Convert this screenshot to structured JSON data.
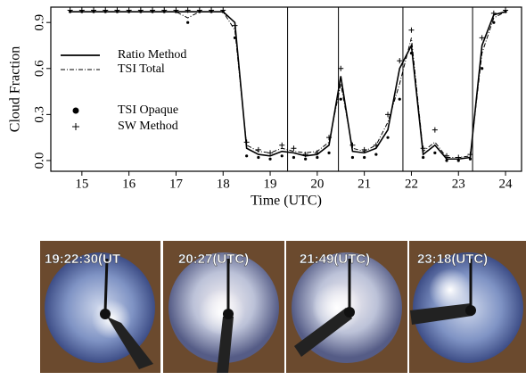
{
  "chart_data": {
    "type": "line",
    "xlabel": "Time (UTC)",
    "ylabel": "Cloud Fraction",
    "x": [
      14.75,
      15,
      15.25,
      15.5,
      15.75,
      16,
      16.25,
      16.5,
      16.75,
      17,
      17.25,
      17.5,
      17.75,
      18,
      18.25,
      18.5,
      18.75,
      19,
      19.25,
      19.5,
      19.75,
      20,
      20.25,
      20.5,
      20.75,
      21,
      21.25,
      21.5,
      21.75,
      22,
      22.25,
      22.5,
      22.75,
      23,
      23.25,
      23.5,
      23.75,
      24
    ],
    "series": [
      {
        "name": "Ratio Method",
        "color": "#000000",
        "style": "solid",
        "values": [
          0.97,
          0.97,
          0.97,
          0.97,
          0.97,
          0.97,
          0.97,
          0.97,
          0.97,
          0.97,
          0.97,
          0.97,
          0.97,
          0.97,
          0.9,
          0.08,
          0.04,
          0.03,
          0.06,
          0.05,
          0.03,
          0.04,
          0.1,
          0.55,
          0.06,
          0.05,
          0.08,
          0.2,
          0.6,
          0.75,
          0.04,
          0.1,
          0.01,
          0.01,
          0.02,
          0.75,
          0.95,
          0.97
        ]
      },
      {
        "name": "TSI Total",
        "color": "#000000",
        "style": "dashdot",
        "values": [
          0.97,
          0.97,
          0.97,
          0.97,
          0.97,
          0.97,
          0.97,
          0.97,
          0.97,
          0.97,
          0.93,
          0.97,
          0.97,
          0.97,
          0.85,
          0.1,
          0.06,
          0.05,
          0.08,
          0.06,
          0.05,
          0.06,
          0.12,
          0.5,
          0.08,
          0.06,
          0.1,
          0.25,
          0.5,
          0.8,
          0.06,
          0.12,
          0.02,
          0.02,
          0.03,
          0.7,
          0.93,
          0.97
        ]
      },
      {
        "name": "TSI Opaque",
        "color": "#000000",
        "style": "dot",
        "values": [
          0.97,
          0.97,
          0.97,
          0.97,
          0.97,
          0.97,
          0.97,
          0.97,
          0.97,
          0.97,
          0.9,
          0.97,
          0.97,
          0.97,
          0.8,
          0.03,
          0.02,
          0.01,
          0.03,
          0.02,
          0.01,
          0.02,
          0.05,
          0.4,
          0.02,
          0.02,
          0.04,
          0.15,
          0.4,
          0.7,
          0.02,
          0.05,
          0.0,
          0.0,
          0.01,
          0.6,
          0.9,
          0.97
        ]
      },
      {
        "name": "SW Method",
        "color": "#000000",
        "style": "plus",
        "values": [
          0.98,
          0.98,
          0.98,
          0.98,
          0.98,
          0.98,
          0.98,
          0.98,
          0.98,
          0.98,
          0.98,
          0.98,
          0.98,
          0.98,
          0.88,
          0.12,
          0.07,
          0.05,
          0.1,
          0.08,
          0.04,
          0.05,
          0.15,
          0.6,
          0.1,
          0.07,
          0.1,
          0.3,
          0.65,
          0.85,
          0.08,
          0.2,
          0.03,
          0.02,
          0.04,
          0.8,
          0.96,
          0.98
        ]
      }
    ],
    "vlines": [
      19.37,
      20.45,
      21.82,
      23.3
    ],
    "xlim": [
      14.34,
      24.34
    ],
    "xticks": [
      15,
      16,
      17,
      18,
      19,
      20,
      21,
      22,
      23,
      24
    ],
    "ylim": [
      -0.07,
      1.0
    ],
    "yticks": [
      {
        "value": 0,
        "label": "0.0"
      },
      0.3,
      0.6,
      0.9
    ],
    "legend": "upper left"
  },
  "panels": [
    {
      "caption": "19:22:30(UT"
    },
    {
      "caption": "20:27(UTC)"
    },
    {
      "caption": "21:49(UTC)"
    },
    {
      "caption": "23:18(UTC)"
    }
  ]
}
